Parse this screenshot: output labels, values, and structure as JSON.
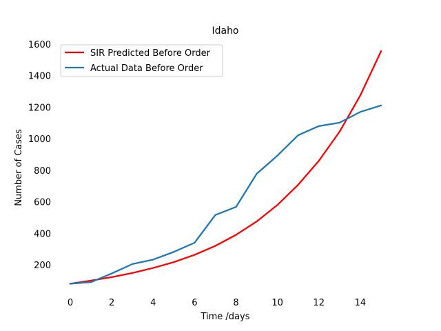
{
  "chart_data": {
    "type": "line",
    "title": "Idaho",
    "xlabel": "Time /days",
    "ylabel": "Number of Cases",
    "xlim": [
      0,
      15
    ],
    "ylim": [
      80,
      1600
    ],
    "x_ticks": [
      0,
      2,
      4,
      6,
      8,
      10,
      12,
      14
    ],
    "y_ticks": [
      200,
      400,
      600,
      800,
      1000,
      1200,
      1400,
      1600
    ],
    "grid": false,
    "legend_position": "upper-left",
    "series": [
      {
        "name": "SIR Predicted Before Order",
        "color": "#ff0000",
        "x": [
          0,
          1,
          2,
          3,
          4,
          5,
          6,
          7,
          8,
          9,
          10,
          11,
          12,
          13,
          14,
          15
        ],
        "values": [
          80,
          100,
          122,
          148,
          180,
          217,
          263,
          320,
          390,
          475,
          580,
          708,
          860,
          1045,
          1275,
          1555
        ]
      },
      {
        "name": "Actual Data Before Order",
        "color": "#1f77b4",
        "x": [
          0,
          1,
          2,
          3,
          4,
          5,
          6,
          7,
          8,
          9,
          10,
          11,
          12,
          13,
          14,
          15
        ],
        "values": [
          80,
          90,
          145,
          205,
          233,
          282,
          340,
          516,
          567,
          778,
          893,
          1022,
          1080,
          1102,
          1170,
          1211
        ]
      }
    ]
  }
}
